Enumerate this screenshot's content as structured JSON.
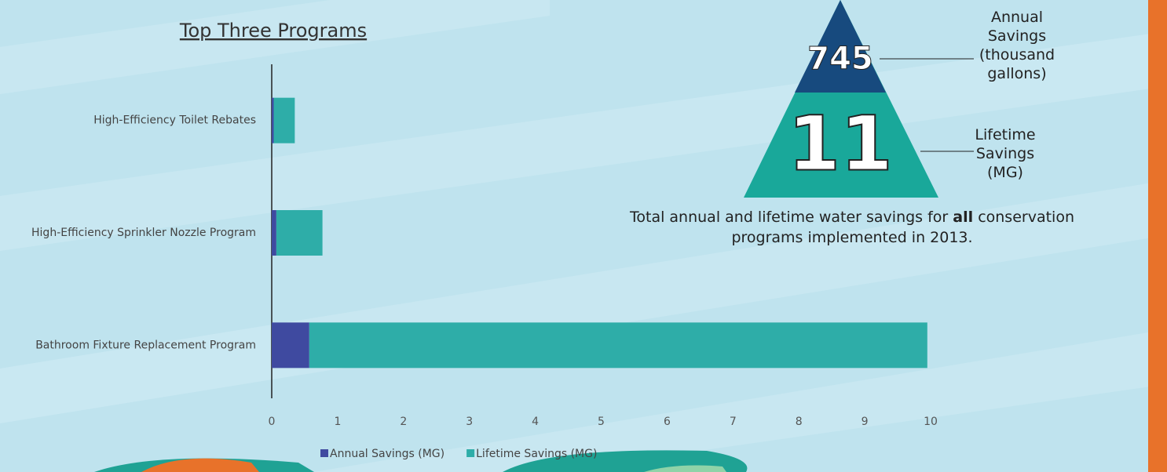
{
  "chart_data": {
    "type": "stacked-barh",
    "title": "Top Three Programs",
    "categories": [
      "High-Efficiency Toilet Rebates",
      "High-Efficiency Sprinkler Nozzle Program",
      "Bathroom Fixture Replacement Program"
    ],
    "series": [
      {
        "name": "Annual Savings (MG)",
        "color": "#3f4aa0",
        "values": [
          0.03,
          0.07,
          0.57
        ]
      },
      {
        "name": "Lifetime Savings (MG)",
        "color": "#2eada8",
        "values": [
          0.32,
          0.7,
          9.38
        ]
      }
    ],
    "xlim": [
      0,
      10
    ],
    "xticks": [
      0,
      1,
      2,
      3,
      4,
      5,
      6,
      7,
      8,
      9,
      10
    ],
    "legend": "bottom"
  },
  "infographic": {
    "annual_value": 745,
    "annual_label": "Annual Savings (thousand gallons)",
    "lifetime_value": 11,
    "lifetime_label": "Lifetime Savings (MG)",
    "note_parts": [
      "Total annual and lifetime water savings for",
      "all",
      "conservation programs implemented in 2013."
    ]
  }
}
